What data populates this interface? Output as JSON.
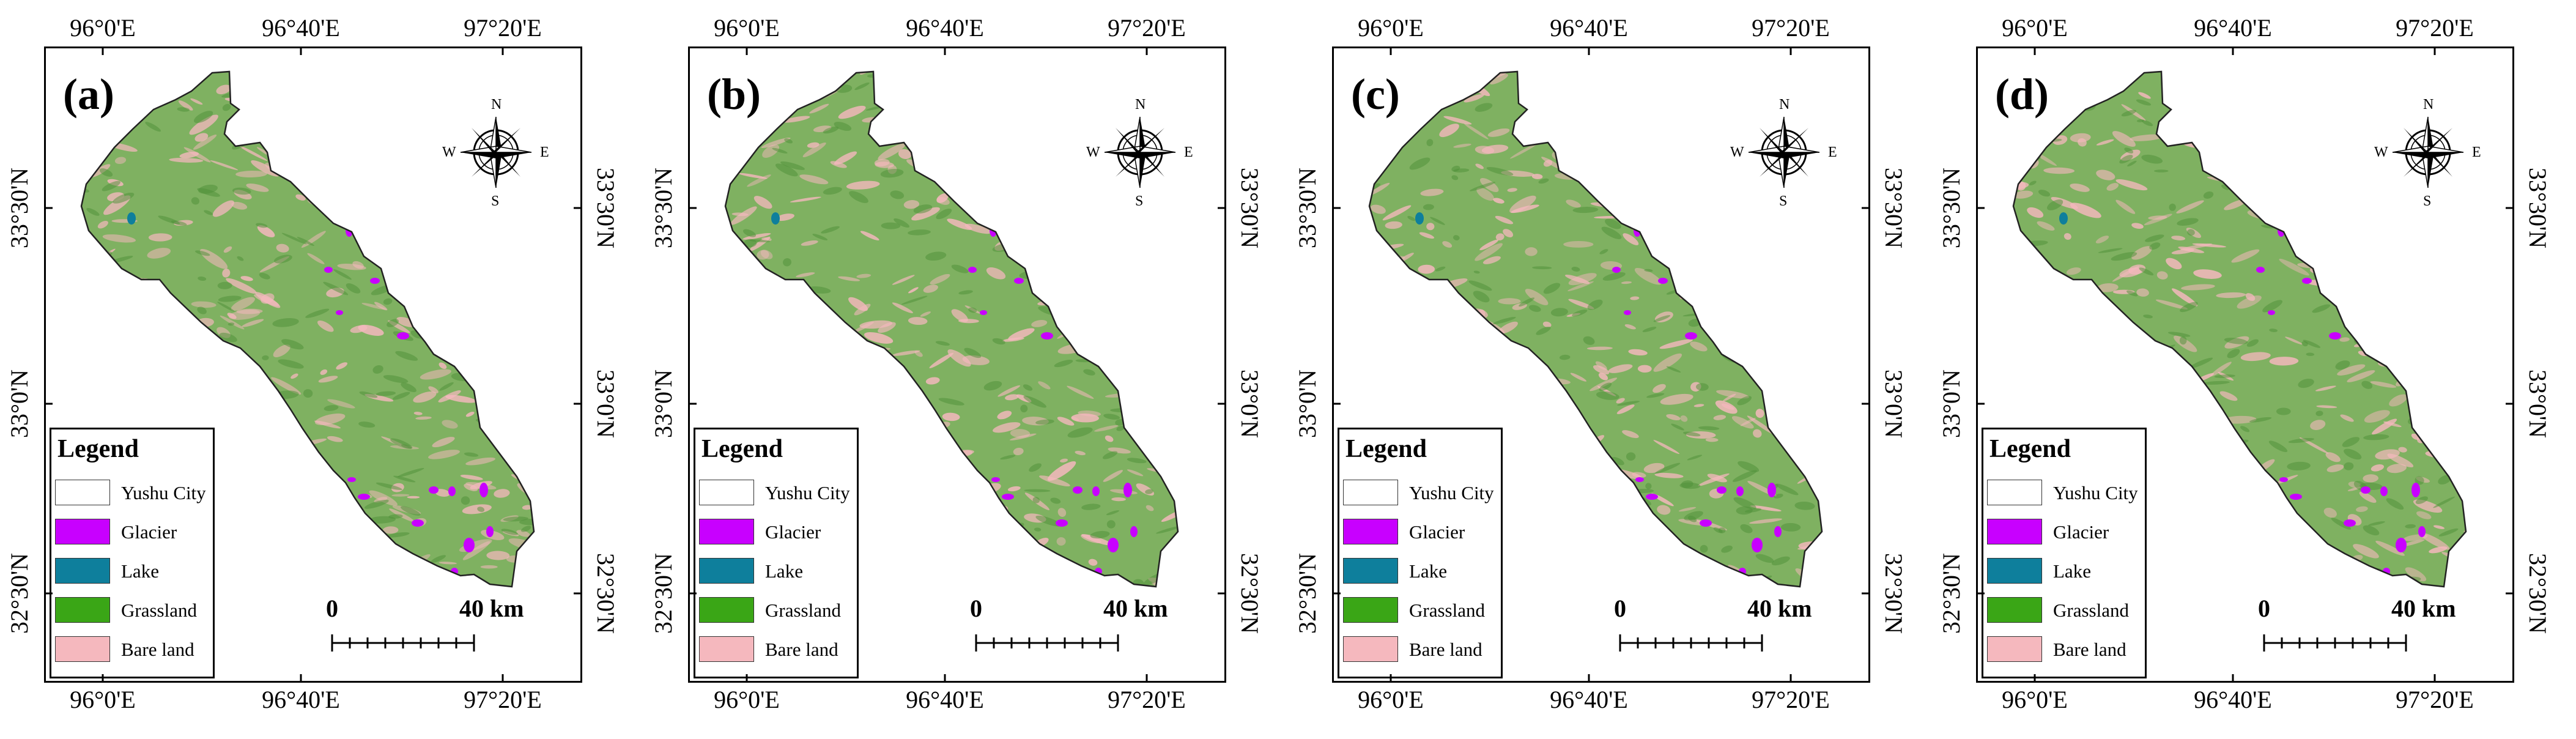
{
  "colors": {
    "glacier": "#c800ff",
    "lake": "#0e7f9c",
    "grassland": "#3aa616",
    "bare_land": "#f5b8be",
    "yushu_city": "#ffffff",
    "map_green": "#7fb161"
  },
  "coordinates": {
    "top": [
      "96°0'E",
      "96°40'E",
      "97°20'E"
    ],
    "bottom": [
      "96°0'E",
      "96°40'E",
      "97°20'E"
    ],
    "left": [
      "33°30'N",
      "33°0'N",
      "32°30'N"
    ],
    "right": [
      "33°30'N",
      "33°0'N",
      "32°30'N"
    ]
  },
  "compass": {
    "n": "N",
    "s": "S",
    "e": "E",
    "w": "W"
  },
  "legend": {
    "title": "Legend",
    "items": [
      {
        "label": "Yushu City",
        "color": "#ffffff"
      },
      {
        "label": "Glacier",
        "color": "#c800ff"
      },
      {
        "label": "Lake",
        "color": "#0e7f9c"
      },
      {
        "label": "Grassland",
        "color": "#3aa616"
      },
      {
        "label": "Bare land",
        "color": "#f5b8be"
      }
    ]
  },
  "scale_bar": {
    "start": "0",
    "end": "40 km"
  },
  "panels": [
    {
      "label": "(a)"
    },
    {
      "label": "(b)"
    },
    {
      "label": "(c)"
    },
    {
      "label": "(d)"
    }
  ]
}
